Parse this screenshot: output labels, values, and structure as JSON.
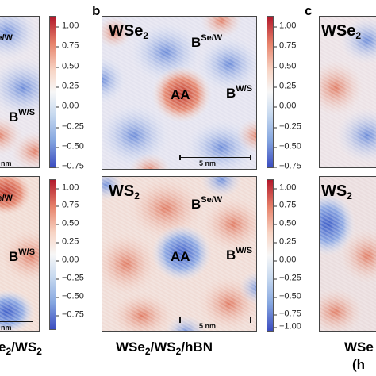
{
  "panel_letters": {
    "b": "b",
    "c": "c"
  },
  "panel_a": {
    "top_labels": {
      "bsew": {
        "main": "B",
        "sup": "Se/W"
      },
      "bws": {
        "main": "B",
        "sup": "W/S"
      }
    },
    "bottom_labels": {
      "bsew": {
        "main": "B",
        "sup": "Se/W"
      },
      "bws": {
        "main": "B",
        "sup": "W/S"
      }
    },
    "scale_top": "nm",
    "scale_bottom": "nm",
    "caption": {
      "part1": "e",
      "sub1": "2",
      "part2": "/WS",
      "sub2": "2"
    }
  },
  "colorbar_a_top": [
    "1.00",
    "0.75",
    "0.50",
    "0.25",
    "0.00",
    "−0.25",
    "−0.50",
    "−0.75"
  ],
  "colorbar_a_bottom": [
    "1.00",
    "0.75",
    "0.50",
    "0.25",
    "0.00",
    "−0.25",
    "−0.50",
    "−0.75"
  ],
  "panel_b": {
    "top_title": {
      "main": "WSe",
      "sub": "2"
    },
    "bottom_title": {
      "main": "WS",
      "sub": "2"
    },
    "aa_top": "AA",
    "aa_bottom": "AA",
    "top_labels": {
      "bsew": {
        "main": "B",
        "sup": "Se/W"
      },
      "bws": {
        "main": "B",
        "sup": "W/S"
      }
    },
    "bottom_labels": {
      "bsew": {
        "main": "B",
        "sup": "Se/W"
      },
      "bws": {
        "main": "B",
        "sup": "W/S"
      }
    },
    "scale_top": "5 nm",
    "scale_bottom": "5 nm",
    "caption": {
      "p1": "WSe",
      "s1": "2",
      "p2": "/WS",
      "s2": "2",
      "p3": "/hBN"
    }
  },
  "colorbar_b_top": [
    "1.00",
    "0.75",
    "0.50",
    "0.25",
    "0.00",
    "−0.25",
    "−0.50",
    "−0.75"
  ],
  "colorbar_b_bottom": [
    "1.00",
    "0.75",
    "0.50",
    "0.25",
    "0.00",
    "−0.25",
    "−0.50",
    "−0.75",
    "−1.00"
  ],
  "panel_c": {
    "top_title": {
      "main": "WSe",
      "sub": "2"
    },
    "bottom_title": {
      "main": "WS",
      "sub": "2"
    },
    "caption1": "WSe",
    "caption2": "(h"
  },
  "colors": {
    "red": "#b2182b",
    "white": "#f7f7f7",
    "blue": "#3b4cc0"
  }
}
